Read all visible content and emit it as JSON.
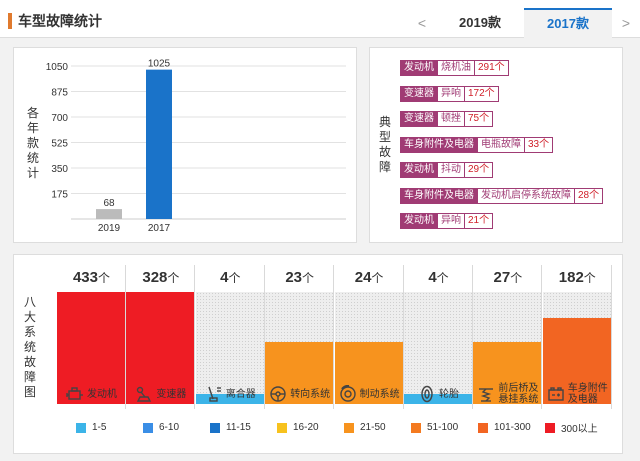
{
  "header": {
    "title": "车型故障统计",
    "tabs": [
      {
        "label": "2019款"
      },
      {
        "label": "2017款"
      }
    ],
    "active_tab": "2017款",
    "prev_icon": "<",
    "next_icon": ">"
  },
  "year_chart": {
    "label_chars": [
      "各",
      "年",
      "款",
      "统",
      "计"
    ]
  },
  "chart_data": {
    "type": "bar",
    "categories": [
      "2019",
      "2017"
    ],
    "values": [
      68,
      1025
    ],
    "colors": [
      "#bbbbbb",
      "#1a73c9"
    ],
    "yticks": [
      175,
      350,
      525,
      700,
      875,
      1050
    ],
    "ylim": [
      0,
      1050
    ],
    "grid": true
  },
  "typical_faults": {
    "label_chars": [
      "典",
      "型",
      "故",
      "障"
    ],
    "items": [
      {
        "system": "发动机",
        "symptom": "烧机油",
        "count": "291个"
      },
      {
        "system": "变速器",
        "symptom": "异响",
        "count": "172个"
      },
      {
        "system": "变速器",
        "symptom": "顿挫",
        "count": "75个"
      },
      {
        "system": "车身附件及电器",
        "symptom": "电瓶故障",
        "count": "33个"
      },
      {
        "system": "发动机",
        "symptom": "抖动",
        "count": "29个"
      },
      {
        "system": "车身附件及电器",
        "symptom": "发动机启停系统故障",
        "count": "28个"
      },
      {
        "system": "发动机",
        "symptom": "异响",
        "count": "21个"
      }
    ]
  },
  "fault_grid": {
    "label_chars": [
      "八",
      "大",
      "系",
      "统",
      "故",
      "障",
      "图"
    ],
    "unit": "个",
    "columns": [
      {
        "count": "433",
        "name_lines": [
          "发动机"
        ],
        "icon": "engine-icon",
        "fill": 1.0,
        "color": "#ee1c24"
      },
      {
        "count": "328",
        "name_lines": [
          "变速器"
        ],
        "icon": "gear-shift-icon",
        "fill": 1.0,
        "color": "#ee1c24"
      },
      {
        "count": "4",
        "name_lines": [
          "离合器"
        ],
        "icon": "clutch-pedal-icon",
        "fill": 0.09,
        "color": "#3cb4e8"
      },
      {
        "count": "23",
        "name_lines": [
          "转向系统"
        ],
        "icon": "steering-wheel-icon",
        "fill": 0.55,
        "color": "#f7931e"
      },
      {
        "count": "24",
        "name_lines": [
          "制动系统"
        ],
        "icon": "brake-disc-icon",
        "fill": 0.55,
        "color": "#f7931e"
      },
      {
        "count": "4",
        "name_lines": [
          "轮胎"
        ],
        "icon": "tire-icon",
        "fill": 0.09,
        "color": "#3cb4e8"
      },
      {
        "count": "27",
        "name_lines": [
          "前后桥及",
          "悬挂系统"
        ],
        "icon": "suspension-icon",
        "fill": 0.55,
        "color": "#f7931e"
      },
      {
        "count": "182",
        "name_lines": [
          "车身附件",
          "及电器"
        ],
        "icon": "battery-icon",
        "fill": 0.77,
        "color": "#f26522"
      }
    ]
  },
  "legend": [
    {
      "label": "1-5",
      "color": "#3cb4e8"
    },
    {
      "label": "6-10",
      "color": "#3a8ee6"
    },
    {
      "label": "11-15",
      "color": "#1a73c9"
    },
    {
      "label": "16-20",
      "color": "#f7c21e"
    },
    {
      "label": "21-50",
      "color": "#f7931e"
    },
    {
      "label": "51-100",
      "color": "#f47a20"
    },
    {
      "label": "101-300",
      "color": "#f26522"
    },
    {
      "label": "300以上",
      "color": "#ee1c24"
    }
  ]
}
